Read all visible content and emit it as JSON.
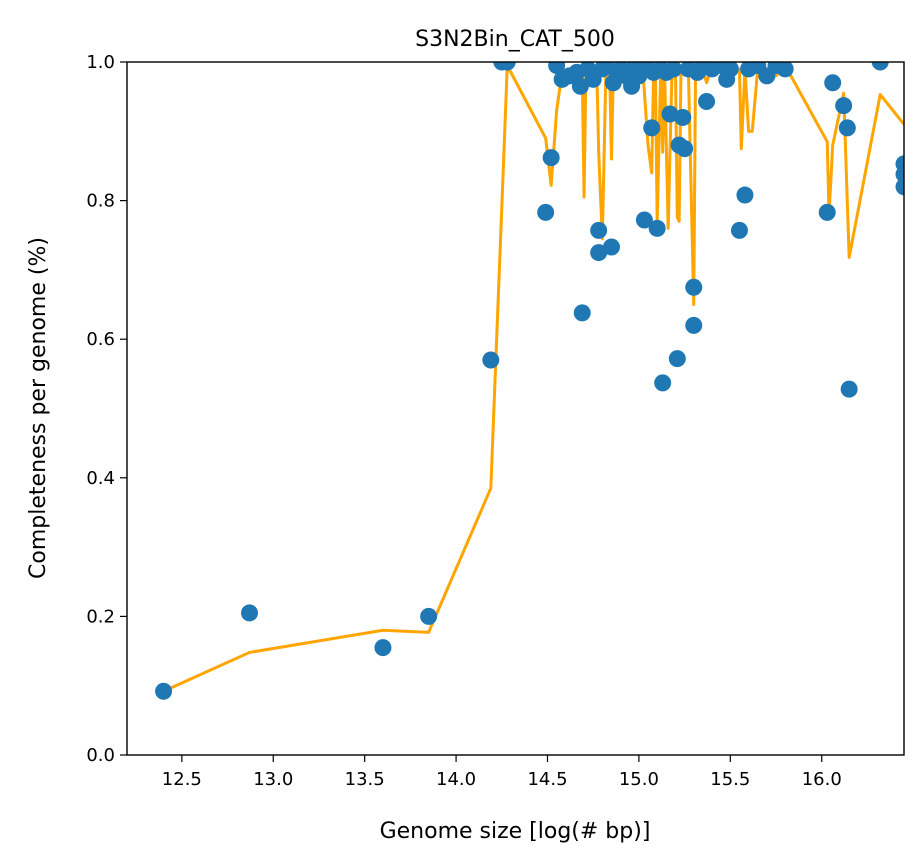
{
  "chart_data": {
    "type": "scatter",
    "title": "S3N2Bin_CAT_500",
    "xlabel": "Genome size [log(# bp)]",
    "ylabel": "Completeness per genome (%)",
    "xlim": [
      12.2,
      16.45
    ],
    "ylim": [
      0.0,
      1.0
    ],
    "xticks": [
      12.5,
      13.0,
      13.5,
      14.0,
      14.5,
      15.0,
      15.5,
      16.0
    ],
    "xtick_labels": [
      "12.5",
      "13.0",
      "13.5",
      "14.0",
      "14.5",
      "15.0",
      "15.5",
      "16.0"
    ],
    "yticks": [
      0.0,
      0.2,
      0.4,
      0.6,
      0.8,
      1.0
    ],
    "ytick_labels": [
      "0.0",
      "0.2",
      "0.4",
      "0.6",
      "0.8",
      "1.0"
    ],
    "grid": false,
    "legend": false,
    "colors": {
      "points": "#1f77b4",
      "line": "#ffa500"
    },
    "series": [
      {
        "kind": "scatter",
        "points": [
          [
            12.4,
            0.092
          ],
          [
            12.87,
            0.205
          ],
          [
            13.6,
            0.155
          ],
          [
            13.85,
            0.2
          ],
          [
            14.19,
            0.57
          ],
          [
            14.25,
            1.0
          ],
          [
            14.28,
            1.0
          ],
          [
            14.49,
            0.783
          ],
          [
            14.52,
            0.862
          ],
          [
            14.55,
            0.995
          ],
          [
            14.58,
            0.975
          ],
          [
            14.62,
            0.98
          ],
          [
            14.66,
            0.985
          ],
          [
            14.68,
            0.965
          ],
          [
            14.69,
            0.638
          ],
          [
            14.72,
            0.99
          ],
          [
            14.75,
            0.975
          ],
          [
            14.78,
            0.757
          ],
          [
            14.78,
            0.725
          ],
          [
            14.8,
            0.99
          ],
          [
            14.82,
            0.995
          ],
          [
            14.85,
            0.733
          ],
          [
            14.86,
            0.97
          ],
          [
            14.88,
            0.985
          ],
          [
            14.9,
            0.99
          ],
          [
            14.93,
            0.98
          ],
          [
            14.96,
            0.965
          ],
          [
            14.98,
            0.995
          ],
          [
            15.0,
            0.98
          ],
          [
            15.03,
            0.772
          ],
          [
            15.05,
            0.99
          ],
          [
            15.07,
            0.905
          ],
          [
            15.08,
            0.985
          ],
          [
            15.1,
            0.76
          ],
          [
            15.12,
            0.99
          ],
          [
            15.13,
            0.537
          ],
          [
            15.15,
            0.985
          ],
          [
            15.17,
            0.925
          ],
          [
            15.19,
            0.99
          ],
          [
            15.21,
            0.572
          ],
          [
            15.22,
            0.88
          ],
          [
            15.24,
            0.92
          ],
          [
            15.25,
            0.875
          ],
          [
            15.27,
            0.99
          ],
          [
            15.3,
            0.62
          ],
          [
            15.3,
            0.675
          ],
          [
            15.32,
            0.985
          ],
          [
            15.35,
            0.995
          ],
          [
            15.37,
            0.943
          ],
          [
            15.4,
            0.99
          ],
          [
            15.45,
            0.995
          ],
          [
            15.48,
            0.975
          ],
          [
            15.5,
            0.99
          ],
          [
            15.55,
            0.757
          ],
          [
            15.58,
            0.808
          ],
          [
            15.6,
            0.99
          ],
          [
            15.65,
            0.995
          ],
          [
            15.7,
            0.98
          ],
          [
            15.75,
            0.995
          ],
          [
            15.8,
            0.99
          ],
          [
            16.03,
            0.783
          ],
          [
            16.06,
            0.97
          ],
          [
            16.12,
            0.937
          ],
          [
            16.14,
            0.905
          ],
          [
            16.15,
            0.528
          ],
          [
            16.32,
            1.0
          ],
          [
            16.45,
            0.853
          ],
          [
            16.45,
            0.838
          ],
          [
            16.45,
            0.82
          ]
        ]
      },
      {
        "kind": "line",
        "points": [
          [
            12.4,
            0.092
          ],
          [
            12.87,
            0.148
          ],
          [
            13.6,
            0.18
          ],
          [
            13.85,
            0.177
          ],
          [
            14.19,
            0.385
          ],
          [
            14.25,
            0.79
          ],
          [
            14.28,
            0.995
          ],
          [
            14.49,
            0.89
          ],
          [
            14.52,
            0.822
          ],
          [
            14.55,
            0.93
          ],
          [
            14.58,
            0.985
          ],
          [
            14.66,
            0.98
          ],
          [
            14.69,
            0.985
          ],
          [
            14.7,
            0.805
          ],
          [
            14.71,
            0.985
          ],
          [
            14.75,
            0.99
          ],
          [
            14.77,
            0.985
          ],
          [
            14.78,
            0.87
          ],
          [
            14.8,
            0.745
          ],
          [
            14.82,
            0.995
          ],
          [
            14.84,
            0.99
          ],
          [
            14.85,
            0.86
          ],
          [
            14.86,
            0.985
          ],
          [
            14.9,
            0.99
          ],
          [
            14.93,
            0.96
          ],
          [
            14.95,
            0.995
          ],
          [
            14.98,
            0.99
          ],
          [
            15.0,
            0.97
          ],
          [
            15.02,
            0.995
          ],
          [
            15.05,
            0.88
          ],
          [
            15.07,
            0.84
          ],
          [
            15.08,
            0.98
          ],
          [
            15.09,
            0.99
          ],
          [
            15.1,
            0.77
          ],
          [
            15.12,
            0.995
          ],
          [
            15.13,
            0.87
          ],
          [
            15.14,
            0.995
          ],
          [
            15.16,
            0.76
          ],
          [
            15.18,
            0.975
          ],
          [
            15.2,
            0.99
          ],
          [
            15.21,
            0.776
          ],
          [
            15.22,
            0.77
          ],
          [
            15.23,
            0.985
          ],
          [
            15.25,
            0.99
          ],
          [
            15.27,
            0.995
          ],
          [
            15.3,
            0.65
          ],
          [
            15.31,
            0.995
          ],
          [
            15.33,
            0.98
          ],
          [
            15.35,
            0.99
          ],
          [
            15.37,
            0.97
          ],
          [
            15.4,
            0.995
          ],
          [
            15.45,
            0.985
          ],
          [
            15.5,
            0.98
          ],
          [
            15.55,
            0.99
          ],
          [
            15.56,
            0.875
          ],
          [
            15.58,
            0.99
          ],
          [
            15.6,
            0.9
          ],
          [
            15.62,
            0.9
          ],
          [
            15.65,
            0.99
          ],
          [
            15.7,
            0.99
          ],
          [
            15.75,
            0.98
          ],
          [
            15.8,
            0.995
          ],
          [
            16.03,
            0.885
          ],
          [
            16.04,
            0.78
          ],
          [
            16.06,
            0.88
          ],
          [
            16.12,
            0.955
          ],
          [
            16.15,
            0.718
          ],
          [
            16.32,
            0.953
          ],
          [
            16.45,
            0.91
          ]
        ]
      }
    ]
  }
}
